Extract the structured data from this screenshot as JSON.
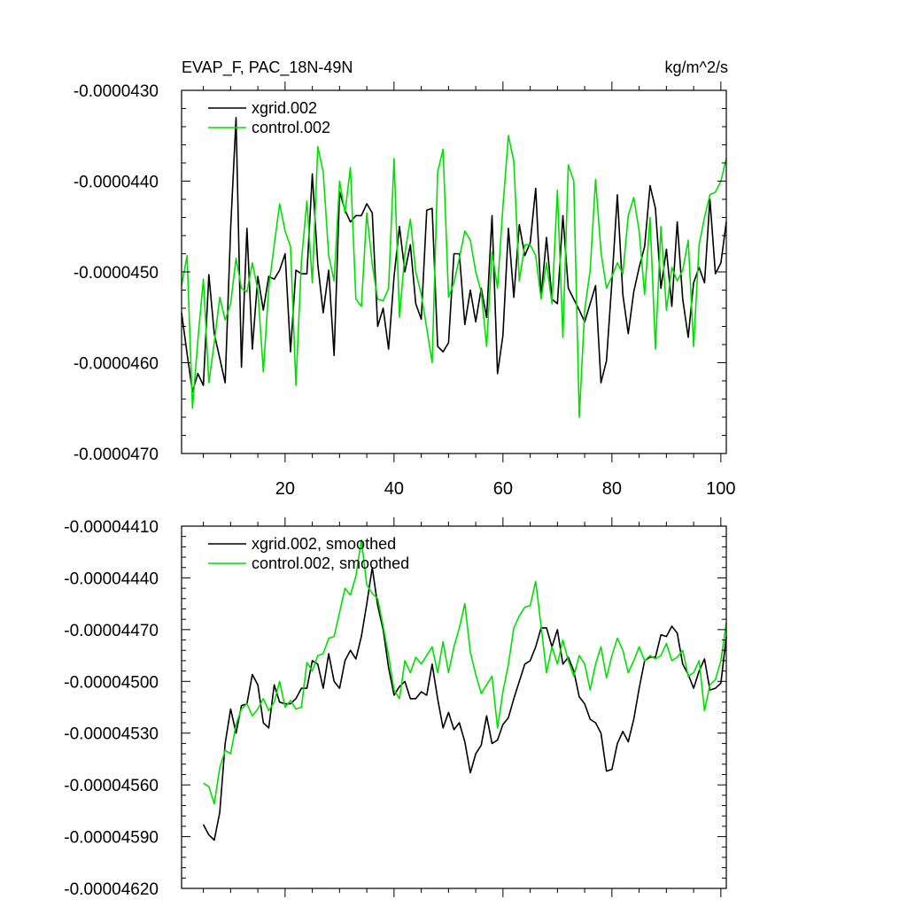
{
  "colors": {
    "xgrid": "#000000",
    "control": "#00e000"
  },
  "chart_data": [
    {
      "type": "line",
      "title": "EVAP_F, PAC_18N-49N",
      "units": "kg/m^2/s",
      "xlim": [
        1,
        101
      ],
      "ylim": [
        -4.7e-05,
        -4.3e-05
      ],
      "x_ticks": [
        20,
        40,
        60,
        80,
        100
      ],
      "x_tick_labels": [
        "20",
        "40",
        "60",
        "80",
        "100"
      ],
      "y_ticks": [
        -4.3e-05,
        -4.4e-05,
        -4.5e-05,
        -4.6e-05,
        -4.7e-05
      ],
      "y_tick_labels": [
        "-0.0000430",
        "-0.0000440",
        "-0.0000450",
        "-0.0000460",
        "-0.0000470"
      ],
      "legend_position": "top-left",
      "x_start": 1,
      "series": [
        {
          "name": "xgrid.002",
          "color": "#000000",
          "values": [
            -4.545e-05,
            -4.59e-05,
            -4.632e-05,
            -4.612e-05,
            -4.625e-05,
            -4.503e-05,
            -4.568e-05,
            -4.595e-05,
            -4.622e-05,
            -4.452e-05,
            -4.33e-05,
            -4.605e-05,
            -4.452e-05,
            -4.585e-05,
            -4.505e-05,
            -4.542e-05,
            -4.505e-05,
            -4.508e-05,
            -4.498e-05,
            -4.48e-05,
            -4.588e-05,
            -4.498e-05,
            -4.502e-05,
            -4.502e-05,
            -4.392e-05,
            -4.492e-05,
            -4.545e-05,
            -4.498e-05,
            -4.592e-05,
            -4.412e-05,
            -4.432e-05,
            -4.445e-05,
            -4.438e-05,
            -4.438e-05,
            -4.425e-05,
            -4.435e-05,
            -4.56e-05,
            -4.54e-05,
            -4.585e-05,
            -4.505e-05,
            -4.45e-05,
            -4.5e-05,
            -4.47e-05,
            -4.535e-05,
            -4.552e-05,
            -4.432e-05,
            -4.43e-05,
            -4.582e-05,
            -4.588e-05,
            -4.578e-05,
            -4.48e-05,
            -4.48e-05,
            -4.558e-05,
            -4.52e-05,
            -4.555e-05,
            -4.518e-05,
            -4.55e-05,
            -4.438e-05,
            -4.612e-05,
            -4.57e-05,
            -4.452e-05,
            -4.528e-05,
            -4.448e-05,
            -4.482e-05,
            -4.468e-05,
            -4.408e-05,
            -4.528e-05,
            -4.462e-05,
            -4.53e-05,
            -4.535e-05,
            -4.438e-05,
            -4.518e-05,
            -4.53e-05,
            -4.542e-05,
            -4.555e-05,
            -4.535e-05,
            -4.515e-05,
            -4.622e-05,
            -4.598e-05,
            -4.51e-05,
            -4.415e-05,
            -4.525e-05,
            -4.568e-05,
            -4.522e-05,
            -4.495e-05,
            -4.472e-05,
            -4.405e-05,
            -4.43e-05,
            -4.518e-05,
            -4.475e-05,
            -4.538e-05,
            -4.445e-05,
            -4.53e-05,
            -4.572e-05,
            -4.512e-05,
            -4.495e-05,
            -4.512e-05,
            -4.42e-05,
            -4.502e-05,
            -4.49e-05,
            -4.445e-05
          ]
        },
        {
          "name": "control.002",
          "color": "#00e000",
          "values": [
            -4.515e-05,
            -4.482e-05,
            -4.65e-05,
            -4.575e-05,
            -4.508e-05,
            -4.622e-05,
            -4.578e-05,
            -4.528e-05,
            -4.553e-05,
            -4.535e-05,
            -4.485e-05,
            -4.518e-05,
            -4.522e-05,
            -4.49e-05,
            -4.52e-05,
            -4.61e-05,
            -4.518e-05,
            -4.47e-05,
            -4.425e-05,
            -4.455e-05,
            -4.472e-05,
            -4.625e-05,
            -4.488e-05,
            -4.422e-05,
            -4.512e-05,
            -4.362e-05,
            -4.39e-05,
            -4.482e-05,
            -4.51e-05,
            -4.4e-05,
            -4.435e-05,
            -4.385e-05,
            -4.53e-05,
            -4.538e-05,
            -4.435e-05,
            -4.492e-05,
            -4.53e-05,
            -4.532e-05,
            -4.518e-05,
            -4.375e-05,
            -4.55e-05,
            -4.48e-05,
            -4.442e-05,
            -4.5e-05,
            -4.525e-05,
            -4.562e-05,
            -4.6e-05,
            -4.39e-05,
            -4.365e-05,
            -4.528e-05,
            -4.512e-05,
            -4.485e-05,
            -4.455e-05,
            -4.465e-05,
            -4.5e-05,
            -4.522e-05,
            -4.582e-05,
            -4.478e-05,
            -4.518e-05,
            -4.428e-05,
            -4.35e-05,
            -4.378e-05,
            -4.51e-05,
            -4.47e-05,
            -4.47e-05,
            -4.482e-05,
            -4.53e-05,
            -4.49e-05,
            -4.535e-05,
            -4.41e-05,
            -4.572e-05,
            -4.382e-05,
            -4.4e-05,
            -4.66e-05,
            -4.542e-05,
            -4.498e-05,
            -4.398e-05,
            -4.478e-05,
            -4.518e-05,
            -4.505e-05,
            -4.49e-05,
            -4.502e-05,
            -4.438e-05,
            -4.418e-05,
            -4.455e-05,
            -4.525e-05,
            -4.44e-05,
            -4.585e-05,
            -4.45e-05,
            -4.542e-05,
            -4.495e-05,
            -4.51e-05,
            -4.498e-05,
            -4.465e-05,
            -4.582e-05,
            -4.47e-05,
            -4.44e-05,
            -4.415e-05,
            -4.412e-05,
            -4.4e-05,
            -4.375e-05
          ]
        }
      ]
    },
    {
      "type": "line",
      "title": "",
      "xlim": [
        1,
        101
      ],
      "ylim": [
        -4.62e-05,
        -4.41e-05
      ],
      "x_ticks": [
        20,
        40,
        60,
        80,
        100
      ],
      "x_tick_labels": [
        "",
        "",
        "",
        "",
        ""
      ],
      "y_ticks": [
        -4.41e-05,
        -4.44e-05,
        -4.47e-05,
        -4.5e-05,
        -4.53e-05,
        -4.56e-05,
        -4.59e-05,
        -4.62e-05
      ],
      "y_tick_labels": [
        "-0.00004410",
        "-0.00004440",
        "-0.00004470",
        "-0.00004500",
        "-0.00004530",
        "-0.00004560",
        "-0.00004590",
        "-0.00004620"
      ],
      "legend_position": "top-left",
      "x_start": 5,
      "series": [
        {
          "name": "xgrid.002, smoothed",
          "color": "#000000",
          "values": [
            -4.583e-05,
            -4.589e-05,
            -4.592e-05,
            -4.576e-05,
            -4.536e-05,
            -4.516e-05,
            -4.53e-05,
            -4.514e-05,
            -4.513e-05,
            -4.496e-05,
            -4.502e-05,
            -4.524e-05,
            -4.527e-05,
            -4.502e-05,
            -4.512e-05,
            -4.513e-05,
            -4.513e-05,
            -4.51e-05,
            -4.504e-05,
            -4.504e-05,
            -4.488e-05,
            -4.49e-05,
            -4.504e-05,
            -4.484e-05,
            -4.5e-05,
            -4.504e-05,
            -4.488e-05,
            -4.482e-05,
            -4.487e-05,
            -4.474e-05,
            -4.455e-05,
            -4.434e-05,
            -4.456e-05,
            -4.47e-05,
            -4.492e-05,
            -4.508e-05,
            -4.503e-05,
            -4.5e-05,
            -4.51e-05,
            -4.51e-05,
            -4.506e-05,
            -4.508e-05,
            -4.49e-05,
            -4.51e-05,
            -4.527e-05,
            -4.518e-05,
            -4.528e-05,
            -4.524e-05,
            -4.535e-05,
            -4.553e-05,
            -4.542e-05,
            -4.537e-05,
            -4.52e-05,
            -4.536e-05,
            -4.534e-05,
            -4.525e-05,
            -4.521e-05,
            -4.51e-05,
            -4.5e-05,
            -4.49e-05,
            -4.488e-05,
            -4.48e-05,
            -4.469e-05,
            -4.469e-05,
            -4.48e-05,
            -4.47e-05,
            -4.49e-05,
            -4.486e-05,
            -4.494e-05,
            -4.509e-05,
            -4.513e-05,
            -4.522e-05,
            -4.524e-05,
            -4.53e-05,
            -4.552e-05,
            -4.551e-05,
            -4.536e-05,
            -4.529e-05,
            -4.535e-05,
            -4.522e-05,
            -4.504e-05,
            -4.488e-05,
            -4.486e-05,
            -4.486e-05,
            -4.473e-05,
            -4.474e-05,
            -4.468e-05,
            -4.472e-05,
            -4.49e-05,
            -4.496e-05,
            -4.504e-05,
            -4.494e-05,
            -4.487e-05,
            -4.505e-05,
            -4.504e-05,
            -4.501e-05,
            -4.474e-05
          ]
        },
        {
          "name": "control.002, smoothed",
          "color": "#00e000",
          "values": [
            -4.559e-05,
            -4.561e-05,
            -4.571e-05,
            -4.55e-05,
            -4.54e-05,
            -4.542e-05,
            -4.525e-05,
            -4.516e-05,
            -4.513e-05,
            -4.52e-05,
            -4.516e-05,
            -4.51e-05,
            -4.517e-05,
            -4.512e-05,
            -4.5e-05,
            -4.515e-05,
            -4.511e-05,
            -4.516e-05,
            -4.515e-05,
            -4.489e-05,
            -4.494e-05,
            -4.485e-05,
            -4.484e-05,
            -4.475e-05,
            -4.474e-05,
            -4.46e-05,
            -4.446e-05,
            -4.45e-05,
            -4.439e-05,
            -4.418e-05,
            -4.444e-05,
            -4.449e-05,
            -4.452e-05,
            -4.468e-05,
            -4.485e-05,
            -4.505e-05,
            -4.51e-05,
            -4.488e-05,
            -4.495e-05,
            -4.486e-05,
            -4.49e-05,
            -4.485e-05,
            -4.48e-05,
            -4.495e-05,
            -4.477e-05,
            -4.495e-05,
            -4.48e-05,
            -4.469e-05,
            -4.455e-05,
            -4.483e-05,
            -4.496e-05,
            -4.507e-05,
            -4.502e-05,
            -4.497e-05,
            -4.527e-05,
            -4.506e-05,
            -4.49e-05,
            -4.469e-05,
            -4.462e-05,
            -4.457e-05,
            -4.456e-05,
            -4.442e-05,
            -4.468e-05,
            -4.495e-05,
            -4.48e-05,
            -4.49e-05,
            -4.476e-05,
            -4.488e-05,
            -4.497e-05,
            -4.485e-05,
            -4.49e-05,
            -4.505e-05,
            -4.49e-05,
            -4.48e-05,
            -4.498e-05,
            -4.485e-05,
            -4.475e-05,
            -4.482e-05,
            -4.495e-05,
            -4.488e-05,
            -4.48e-05,
            -4.488e-05,
            -4.485e-05,
            -4.487e-05,
            -4.485e-05,
            -4.478e-05,
            -4.488e-05,
            -4.486e-05,
            -4.482e-05,
            -4.497e-05,
            -4.495e-05,
            -4.488e-05,
            -4.517e-05,
            -4.502e-05,
            -4.499e-05,
            -4.488e-05,
            -4.466e-05
          ]
        }
      ]
    }
  ]
}
